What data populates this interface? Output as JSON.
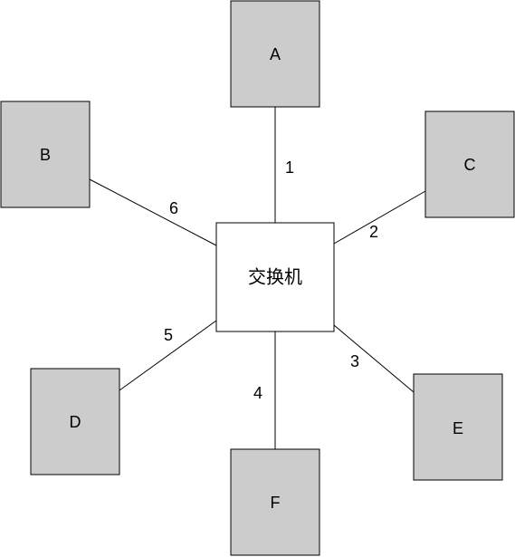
{
  "switch": {
    "label": "交换机",
    "fill": "#ffffff"
  },
  "nodes": [
    {
      "id": "A",
      "label": "A"
    },
    {
      "id": "B",
      "label": "B"
    },
    {
      "id": "C",
      "label": "C"
    },
    {
      "id": "D",
      "label": "D"
    },
    {
      "id": "E",
      "label": "E"
    },
    {
      "id": "F",
      "label": "F"
    }
  ],
  "links": [
    {
      "node": "A",
      "port": "1"
    },
    {
      "node": "C",
      "port": "2"
    },
    {
      "node": "E",
      "port": "3"
    },
    {
      "node": "F",
      "port": "4"
    },
    {
      "node": "D",
      "port": "5"
    },
    {
      "node": "B",
      "port": "6"
    }
  ],
  "colors": {
    "node_fill": "#cccccc",
    "switch_fill": "#ffffff",
    "stroke": "#000000"
  }
}
